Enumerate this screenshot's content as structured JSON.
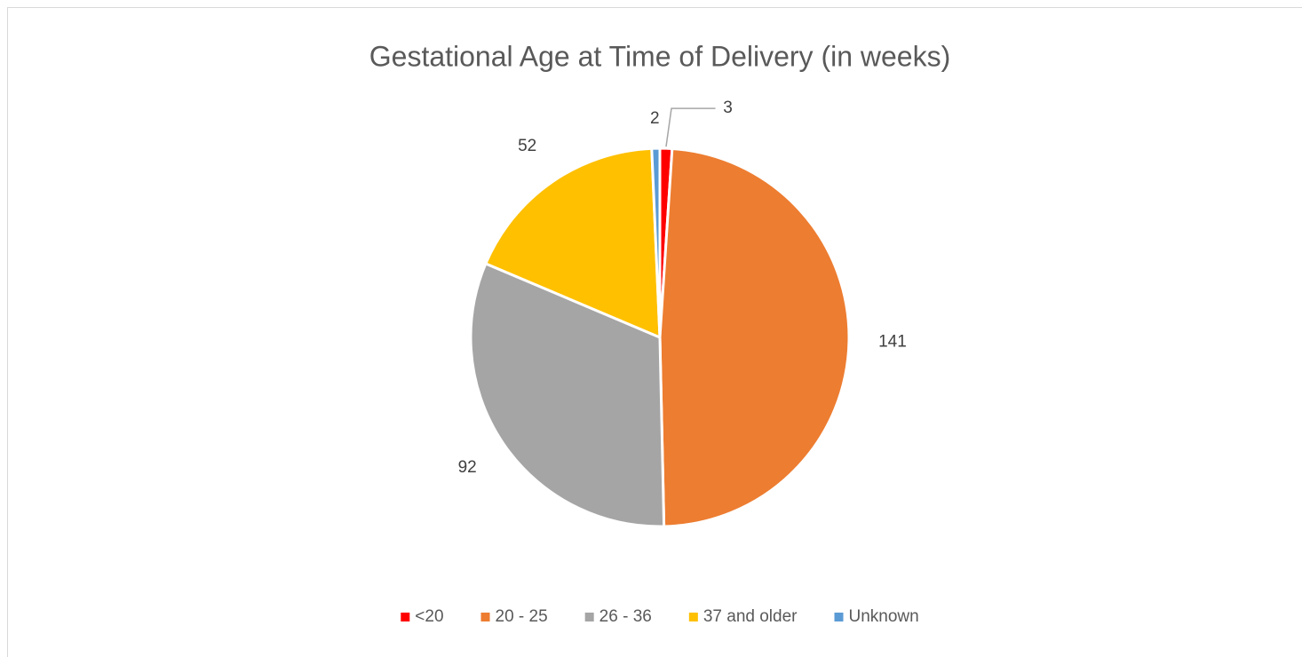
{
  "chart_data": {
    "type": "pie",
    "title": "Gestational Age at Time of Delivery (in weeks)",
    "categories": [
      "<20",
      "20 - 25",
      "26 - 36",
      "37 and older",
      "Unknown"
    ],
    "values": [
      3,
      141,
      92,
      52,
      2
    ],
    "colors": [
      "#ff0000",
      "#ed7d31",
      "#a5a5a5",
      "#ffc000",
      "#5b9bd5"
    ],
    "legend": "bottom"
  }
}
